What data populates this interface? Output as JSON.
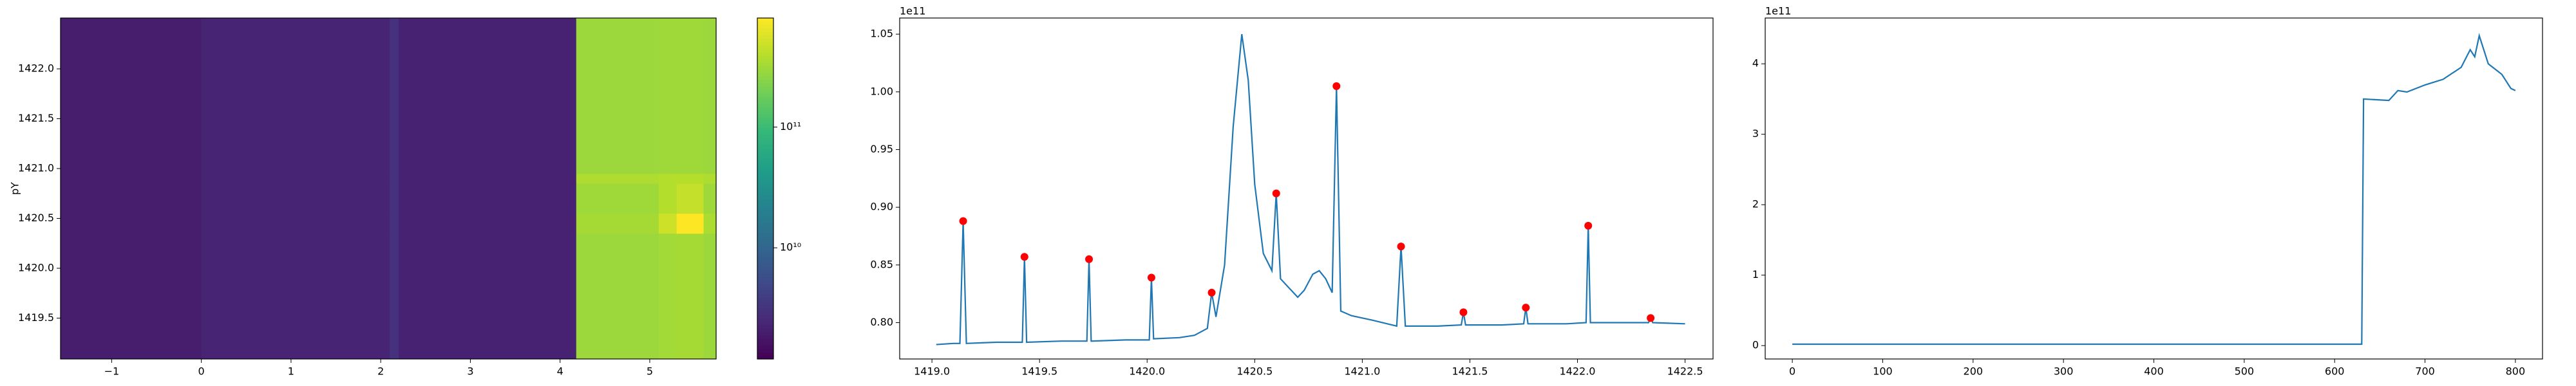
{
  "chart_data": [
    {
      "type": "heatmap",
      "ylabel": "pY",
      "colormap": "viridis",
      "log_color": true,
      "x_edges": [
        -1.57,
        0.0,
        2.1,
        2.2,
        4.18,
        5.1,
        5.3,
        5.6,
        5.74
      ],
      "y_edges": [
        1419.09,
        1420.35,
        1420.55,
        1420.85,
        1420.95,
        1422.51
      ],
      "values": [
        [
          2000000000.0,
          2300000000.0,
          3000000000.0,
          2200000000.0,
          300000000000.0,
          320000000000.0,
          330000000000.0,
          300000000000.0
        ],
        [
          2000000000.0,
          2300000000.0,
          3000000000.0,
          2200000000.0,
          330000000000.0,
          500000000000.0,
          800000000000.0,
          350000000000.0
        ],
        [
          2000000000.0,
          2300000000.0,
          3000000000.0,
          2200000000.0,
          310000000000.0,
          380000000000.0,
          450000000000.0,
          310000000000.0
        ],
        [
          2000000000.0,
          2300000000.0,
          3000000000.0,
          2200000000.0,
          360000000000.0,
          380000000000.0,
          390000000000.0,
          360000000000.0
        ],
        [
          2000000000.0,
          2300000000.0,
          3000000000.0,
          2200000000.0,
          300000000000.0,
          310000000000.0,
          310000000000.0,
          300000000000.0
        ]
      ],
      "xlim": [
        -1.57,
        5.74
      ],
      "ylim": [
        1419.09,
        1422.51
      ],
      "xticks": [
        {
          "value": -1,
          "label": "−1"
        },
        0,
        1,
        2,
        3,
        4,
        5
      ],
      "yticks": [
        1419.5,
        {
          "value": 1420.0,
          "label": "1420.0"
        },
        1420.5,
        {
          "value": 1421.0,
          "label": "1421.0"
        },
        1421.5,
        {
          "value": 1422.0,
          "label": "1422.0"
        }
      ],
      "clim": [
        1200000000.0,
        800000000000.0
      ],
      "cticks": [
        {
          "value": 10000000000.0,
          "label": "10¹⁰"
        },
        {
          "value": 100000000000.0,
          "label": "10¹¹"
        }
      ]
    },
    {
      "type": "line",
      "offset_label": "1e11",
      "series": [
        {
          "color": "#1f77b4",
          "x": [
            1419.02,
            1419.1,
            1419.13,
            1419.145,
            1419.16,
            1419.3,
            1419.42,
            1419.43,
            1419.44,
            1419.6,
            1419.72,
            1419.73,
            1419.74,
            1419.9,
            1420.01,
            1420.02,
            1420.03,
            1420.15,
            1420.22,
            1420.28,
            1420.3,
            1420.32,
            1420.36,
            1420.4,
            1420.44,
            1420.47,
            1420.5,
            1420.54,
            1420.58,
            1420.6,
            1420.62,
            1420.66,
            1420.7,
            1420.73,
            1420.77,
            1420.8,
            1420.83,
            1420.86,
            1420.88,
            1420.9,
            1420.95,
            1421.05,
            1421.16,
            1421.18,
            1421.2,
            1421.35,
            1421.46,
            1421.47,
            1421.48,
            1421.65,
            1421.75,
            1421.76,
            1421.77,
            1421.95,
            1422.04,
            1422.05,
            1422.06,
            1422.2,
            1422.33,
            1422.34,
            1422.35,
            1422.5
          ],
          "values": [
            0.781,
            0.782,
            0.782,
            0.888,
            0.782,
            0.783,
            0.783,
            0.857,
            0.783,
            0.784,
            0.784,
            0.855,
            0.784,
            0.785,
            0.785,
            0.839,
            0.786,
            0.787,
            0.789,
            0.795,
            0.826,
            0.805,
            0.85,
            0.97,
            1.05,
            1.01,
            0.92,
            0.86,
            0.845,
            0.912,
            0.838,
            0.83,
            0.822,
            0.828,
            0.842,
            0.845,
            0.838,
            0.826,
            1.005,
            0.81,
            0.806,
            0.802,
            0.797,
            0.866,
            0.797,
            0.797,
            0.798,
            0.809,
            0.798,
            0.798,
            0.799,
            0.813,
            0.799,
            0.799,
            0.8,
            0.884,
            0.8,
            0.8,
            0.8,
            0.804,
            0.8,
            0.799
          ]
        }
      ],
      "markers": {
        "color": "#ff0000",
        "x": [
          1419.145,
          1419.43,
          1419.73,
          1420.02,
          1420.3,
          1420.6,
          1420.88,
          1421.18,
          1421.47,
          1421.76,
          1422.05,
          1422.34
        ],
        "values": [
          0.888,
          0.857,
          0.855,
          0.839,
          0.826,
          0.912,
          1.005,
          0.866,
          0.809,
          0.813,
          0.884,
          0.804
        ]
      },
      "xlim": [
        1418.85,
        1422.63
      ],
      "ylim": [
        0.7685,
        1.064
      ],
      "xticks": [
        {
          "value": 1419.0,
          "label": "1419.0"
        },
        1419.5,
        {
          "value": 1420.0,
          "label": "1420.0"
        },
        1420.5,
        {
          "value": 1421.0,
          "label": "1421.0"
        },
        1421.5,
        {
          "value": 1422.0,
          "label": "1422.0"
        },
        1422.5
      ],
      "yticks": [
        {
          "value": 0.8,
          "label": "0.80"
        },
        0.85,
        {
          "value": 0.9,
          "label": "0.90"
        },
        0.95,
        {
          "value": 1.0,
          "label": "1.00"
        },
        1.05
      ]
    },
    {
      "type": "line",
      "offset_label": "1e11",
      "series": [
        {
          "color": "#1f77b4",
          "x": [
            0,
            100,
            200,
            300,
            400,
            500,
            600,
            630,
            632,
            660,
            670,
            680,
            700,
            720,
            740,
            750,
            755,
            760,
            770,
            780,
            785,
            795,
            800
          ],
          "values": [
            0.02,
            0.02,
            0.02,
            0.02,
            0.02,
            0.02,
            0.02,
            0.02,
            3.5,
            3.48,
            3.62,
            3.6,
            3.7,
            3.78,
            3.95,
            4.2,
            4.1,
            4.4,
            4.0,
            3.9,
            3.85,
            3.65,
            3.62
          ]
        }
      ],
      "xlim": [
        -30,
        830
      ],
      "ylim": [
        -0.19,
        4.65
      ],
      "xticks": [
        0,
        100,
        200,
        300,
        400,
        500,
        600,
        700,
        800
      ],
      "yticks": [
        0,
        1,
        2,
        3,
        4
      ]
    }
  ]
}
